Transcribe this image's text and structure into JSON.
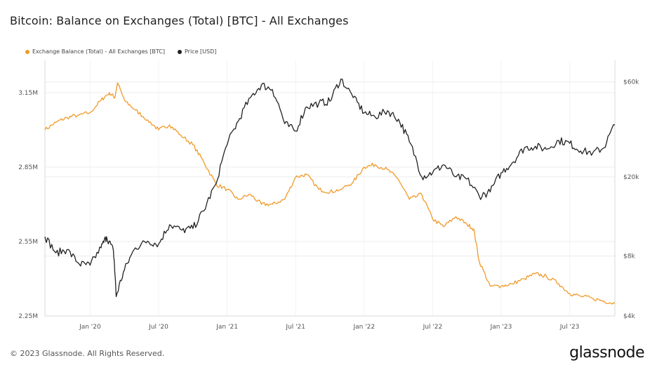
{
  "title": "Bitcoin: Balance on Exchanges (Total) [BTC] - All Exchanges",
  "footer": "© 2023 Glassnode. All Rights Reserved.",
  "brand": "glassnode",
  "colors": {
    "balance": "#f09a28",
    "price": "#222222",
    "grid": "#ececec",
    "axis_text": "#555555"
  },
  "chart_data": {
    "type": "line",
    "grid": true,
    "legend_position": "top-left",
    "x_tick_labels": [
      "Jan '20",
      "Jul '20",
      "Jan '21",
      "Jul '21",
      "Jan '22",
      "Jul '22",
      "Jan '23",
      "Jul '23"
    ],
    "x_ticks": [
      2020.0,
      2020.5,
      2021.0,
      2021.5,
      2022.0,
      2022.5,
      2023.0,
      2023.5
    ],
    "x_range": [
      2019.67,
      2023.83
    ],
    "left_axis": {
      "labels": [
        "2.25M",
        "2.55M",
        "2.85M",
        "3.15M"
      ],
      "values": [
        2250000,
        2550000,
        2850000,
        3150000
      ],
      "range": [
        2250000,
        3280000
      ]
    },
    "right_axis": {
      "labels": [
        "$4k",
        "$8k",
        "$20k",
        "$60k"
      ],
      "values": [
        4000,
        8000,
        20000,
        60000
      ],
      "range": [
        4000,
        77000
      ],
      "scale": "log"
    },
    "series": [
      {
        "name": "Exchange Balance (Total) - All Exchanges [BTC]",
        "axis": "left",
        "points": [
          [
            2019.67,
            3.0
          ],
          [
            2019.75,
            3.03
          ],
          [
            2019.83,
            3.05
          ],
          [
            2019.92,
            3.06
          ],
          [
            2020.0,
            3.07
          ],
          [
            2020.08,
            3.12
          ],
          [
            2020.14,
            3.15
          ],
          [
            2020.18,
            3.13
          ],
          [
            2020.2,
            3.19
          ],
          [
            2020.25,
            3.12
          ],
          [
            2020.33,
            3.08
          ],
          [
            2020.42,
            3.04
          ],
          [
            2020.5,
            3.0
          ],
          [
            2020.58,
            3.02
          ],
          [
            2020.66,
            2.98
          ],
          [
            2020.75,
            2.94
          ],
          [
            2020.83,
            2.87
          ],
          [
            2020.92,
            2.78
          ],
          [
            2021.0,
            2.76
          ],
          [
            2021.08,
            2.72
          ],
          [
            2021.17,
            2.74
          ],
          [
            2021.25,
            2.7
          ],
          [
            2021.33,
            2.7
          ],
          [
            2021.42,
            2.72
          ],
          [
            2021.5,
            2.81
          ],
          [
            2021.58,
            2.82
          ],
          [
            2021.67,
            2.76
          ],
          [
            2021.75,
            2.75
          ],
          [
            2021.83,
            2.76
          ],
          [
            2021.92,
            2.79
          ],
          [
            2022.0,
            2.85
          ],
          [
            2022.08,
            2.86
          ],
          [
            2022.17,
            2.84
          ],
          [
            2022.25,
            2.8
          ],
          [
            2022.33,
            2.72
          ],
          [
            2022.42,
            2.74
          ],
          [
            2022.5,
            2.64
          ],
          [
            2022.58,
            2.61
          ],
          [
            2022.67,
            2.65
          ],
          [
            2022.75,
            2.62
          ],
          [
            2022.8,
            2.6
          ],
          [
            2022.84,
            2.47
          ],
          [
            2022.92,
            2.37
          ],
          [
            2023.0,
            2.37
          ],
          [
            2023.08,
            2.38
          ],
          [
            2023.17,
            2.4
          ],
          [
            2023.25,
            2.42
          ],
          [
            2023.33,
            2.41
          ],
          [
            2023.42,
            2.38
          ],
          [
            2023.5,
            2.34
          ],
          [
            2023.58,
            2.33
          ],
          [
            2023.67,
            2.32
          ],
          [
            2023.75,
            2.31
          ],
          [
            2023.83,
            2.3
          ]
        ]
      },
      {
        "name": "Price [USD]",
        "axis": "right",
        "points": [
          [
            2019.67,
            10000
          ],
          [
            2019.75,
            8300
          ],
          [
            2019.83,
            8600
          ],
          [
            2019.92,
            7300
          ],
          [
            2020.0,
            7200
          ],
          [
            2020.08,
            8800
          ],
          [
            2020.12,
            10000
          ],
          [
            2020.17,
            8500
          ],
          [
            2020.19,
            5000
          ],
          [
            2020.25,
            6800
          ],
          [
            2020.33,
            8800
          ],
          [
            2020.42,
            9500
          ],
          [
            2020.5,
            9200
          ],
          [
            2020.58,
            11500
          ],
          [
            2020.67,
            10800
          ],
          [
            2020.75,
            11000
          ],
          [
            2020.83,
            13500
          ],
          [
            2020.92,
            18500
          ],
          [
            2021.0,
            29000
          ],
          [
            2021.08,
            38000
          ],
          [
            2021.17,
            50000
          ],
          [
            2021.25,
            58000
          ],
          [
            2021.33,
            55000
          ],
          [
            2021.42,
            37000
          ],
          [
            2021.5,
            34000
          ],
          [
            2021.58,
            45000
          ],
          [
            2021.67,
            47000
          ],
          [
            2021.75,
            48000
          ],
          [
            2021.83,
            62000
          ],
          [
            2021.92,
            50000
          ],
          [
            2022.0,
            42000
          ],
          [
            2022.08,
            40000
          ],
          [
            2022.17,
            43000
          ],
          [
            2022.25,
            39000
          ],
          [
            2022.33,
            30000
          ],
          [
            2022.42,
            20000
          ],
          [
            2022.5,
            21000
          ],
          [
            2022.58,
            23000
          ],
          [
            2022.67,
            20000
          ],
          [
            2022.75,
            19500
          ],
          [
            2022.84,
            16000
          ],
          [
            2022.92,
            16800
          ],
          [
            2023.0,
            21000
          ],
          [
            2023.08,
            23500
          ],
          [
            2023.17,
            28000
          ],
          [
            2023.25,
            28500
          ],
          [
            2023.33,
            27500
          ],
          [
            2023.42,
            30500
          ],
          [
            2023.5,
            29500
          ],
          [
            2023.58,
            27000
          ],
          [
            2023.67,
            26500
          ],
          [
            2023.75,
            28000
          ],
          [
            2023.83,
            36500
          ]
        ]
      }
    ]
  }
}
